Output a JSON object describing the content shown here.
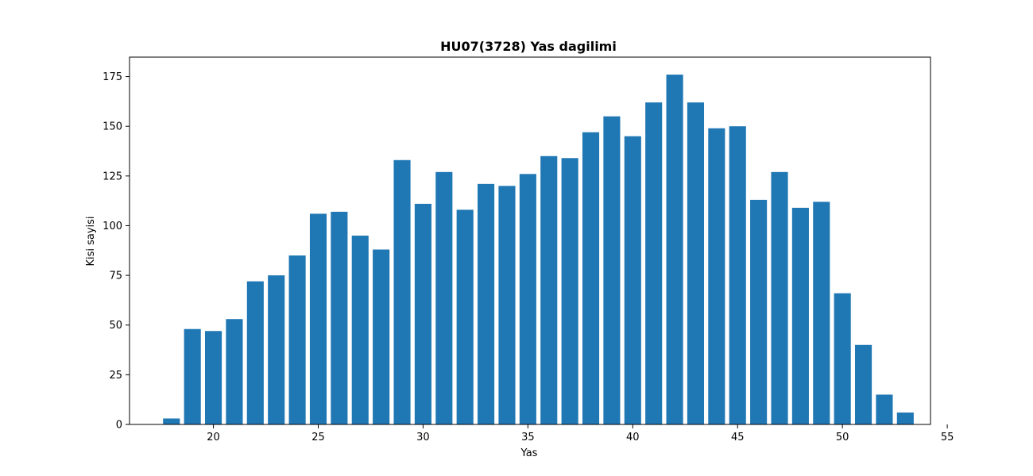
{
  "chart_data": {
    "type": "bar",
    "title": "HU07(3728) Yas dagilimi",
    "xlabel": "Yas",
    "ylabel": "Kisi sayisi",
    "x": [
      18,
      19,
      20,
      21,
      22,
      23,
      24,
      25,
      26,
      27,
      28,
      29,
      30,
      31,
      32,
      33,
      34,
      35,
      36,
      37,
      38,
      39,
      40,
      41,
      42,
      43,
      44,
      45,
      46,
      47,
      48,
      49,
      50,
      51,
      52,
      53
    ],
    "values": [
      3,
      48,
      47,
      53,
      72,
      75,
      85,
      106,
      107,
      95,
      88,
      133,
      111,
      127,
      108,
      121,
      120,
      126,
      135,
      134,
      147,
      155,
      145,
      162,
      176,
      162,
      149,
      150,
      113,
      127,
      109,
      112,
      66,
      40,
      15,
      6
    ],
    "xlim": [
      16.0,
      54.2
    ],
    "ylim": [
      0,
      184.8
    ],
    "xticks": [
      20,
      25,
      30,
      35,
      40,
      45,
      50,
      55
    ],
    "yticks": [
      0,
      25,
      50,
      75,
      100,
      125,
      150,
      175
    ],
    "bar_width": 0.8,
    "bar_color": "#1f77b4",
    "grid": false,
    "legend": "none"
  }
}
